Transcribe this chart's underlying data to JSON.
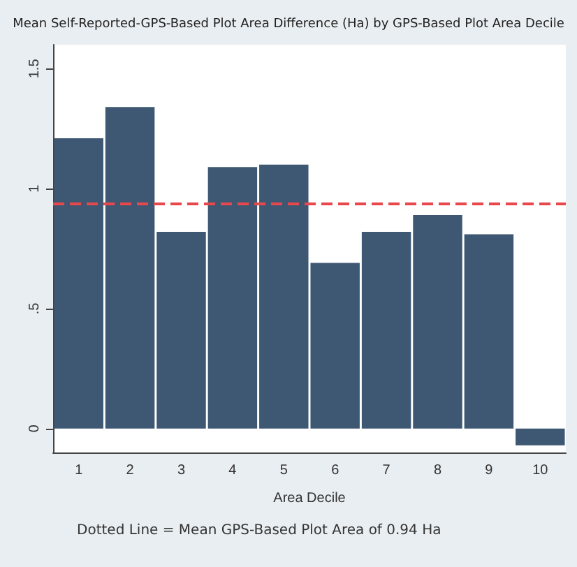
{
  "chart_data": {
    "type": "bar",
    "title": "Mean Self-Reported-GPS-Based Plot Area Difference (Ha) by GPS-Based Plot Area Decile",
    "xlabel": "Area Decile",
    "categories": [
      "1",
      "2",
      "3",
      "4",
      "5",
      "6",
      "7",
      "8",
      "9",
      "10"
    ],
    "values": [
      1.21,
      1.34,
      0.82,
      1.09,
      1.1,
      0.69,
      0.82,
      0.89,
      0.81,
      -0.07
    ],
    "color": "#3e5873",
    "ylim": [
      -0.1,
      1.6
    ],
    "yticks": [
      {
        "value": 0,
        "label": "0"
      },
      {
        "value": 0.5,
        "label": ".5"
      },
      {
        "value": 1,
        "label": "1"
      },
      {
        "value": 1.5,
        "label": "1.5"
      }
    ],
    "grid": false,
    "ref_lines": [
      {
        "axis": "y",
        "value": 0.94,
        "color": "#e8474b",
        "line_style": "dashed"
      }
    ],
    "annotations": [
      "Dotted Line = Mean GPS-Based Plot Area of 0.94 Ha"
    ]
  }
}
